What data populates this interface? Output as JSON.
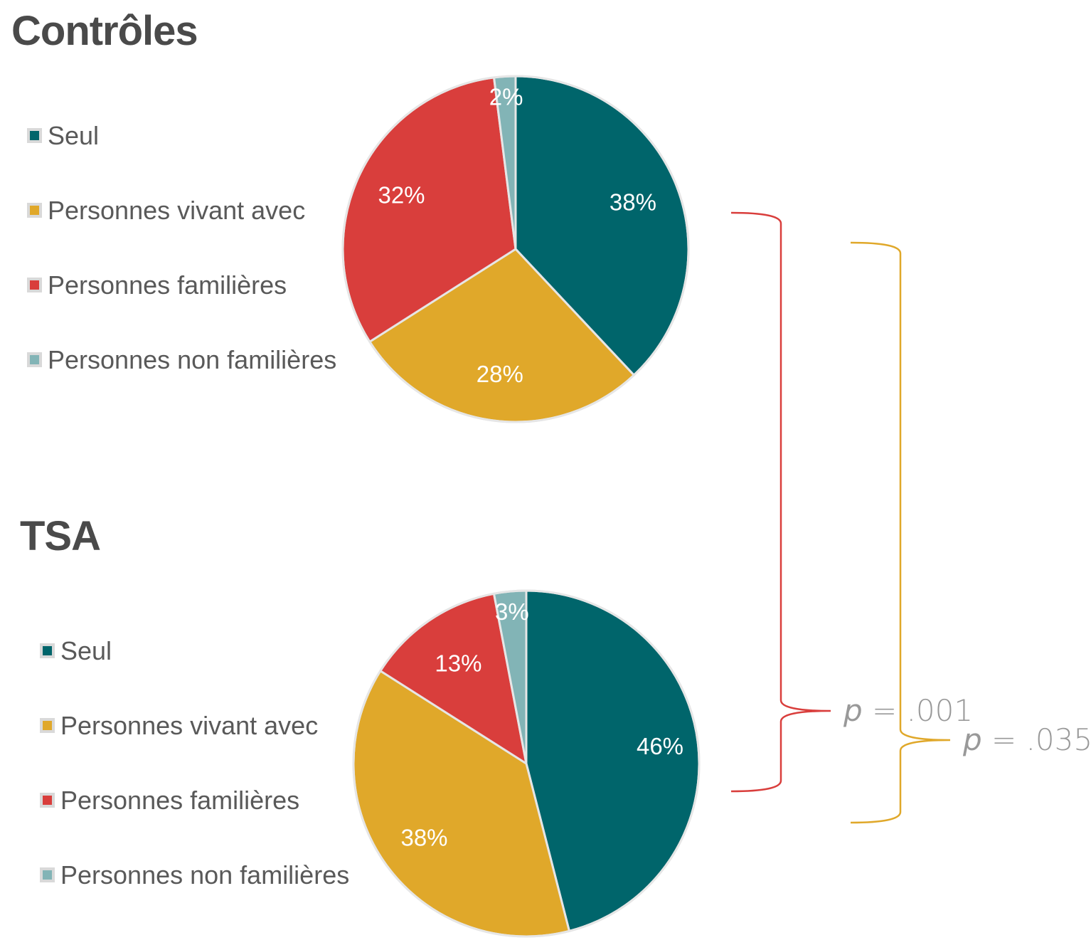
{
  "chart_data": [
    {
      "type": "pie",
      "title": "Contrôles",
      "categories": [
        "Seul",
        "Personnes vivant avec",
        "Personnes familières",
        "Personnes non familières"
      ],
      "values": [
        38,
        28,
        32,
        2
      ],
      "labels": [
        "38%",
        "28%",
        "32%",
        "2%"
      ],
      "colors": [
        "#00656b",
        "#e0a82a",
        "#d93e3c",
        "#82b4b6"
      ],
      "legend_position": "left"
    },
    {
      "type": "pie",
      "title": "TSA",
      "categories": [
        "Seul",
        "Personnes vivant avec",
        "Personnes familières",
        "Personnes non familières"
      ],
      "values": [
        46,
        38,
        13,
        3
      ],
      "labels": [
        "46%",
        "38%",
        "13%",
        "3%"
      ],
      "colors": [
        "#00656b",
        "#e0a82a",
        "#d93e3c",
        "#82b4b6"
      ],
      "legend_position": "left"
    }
  ],
  "annotations": [
    {
      "text": "p = .001",
      "italic_part": "p",
      "rest": " = .001",
      "color": "#d93e3c"
    },
    {
      "text": "p = .035",
      "italic_part": "p",
      "rest": " = .035",
      "color": "#e0a82a"
    }
  ]
}
